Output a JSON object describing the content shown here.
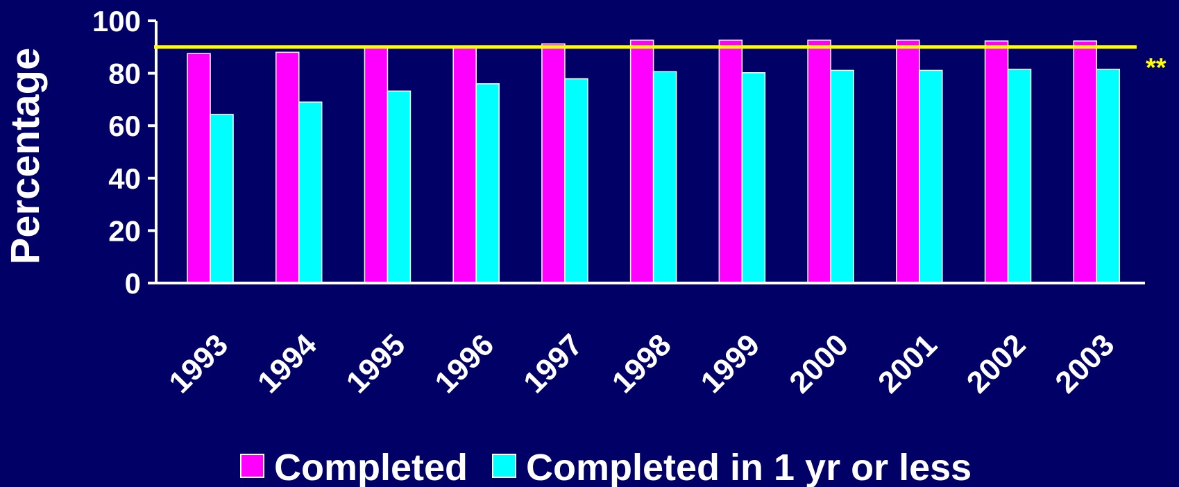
{
  "chart_data": {
    "type": "bar",
    "categories": [
      "1993",
      "1994",
      "1995",
      "1996",
      "1997",
      "1998",
      "1999",
      "2000",
      "2001",
      "2002",
      "2003"
    ],
    "series": [
      {
        "name": "Completed",
        "color": "#ff00ff",
        "values": [
          87.5,
          88,
          90,
          90,
          91.2,
          92.6,
          92.6,
          92.6,
          92.6,
          92.3,
          92.3
        ]
      },
      {
        "name": "Completed in 1 yr or less",
        "color": "#00ffff",
        "values": [
          64.3,
          69,
          73.2,
          76,
          77.9,
          80.6,
          80.2,
          81.1,
          81.1,
          81.5,
          81.5
        ]
      }
    ],
    "ylabel": "Percentage",
    "xlabel": "",
    "ylim": [
      0,
      100
    ],
    "yticks": [
      0,
      20,
      40,
      60,
      80,
      100
    ],
    "reference_line": {
      "value": 90,
      "color": "#ffff00"
    },
    "annotation": "**",
    "legend_position": "bottom",
    "grid": false,
    "background": "#000066",
    "axis_color": "#ffffff"
  }
}
